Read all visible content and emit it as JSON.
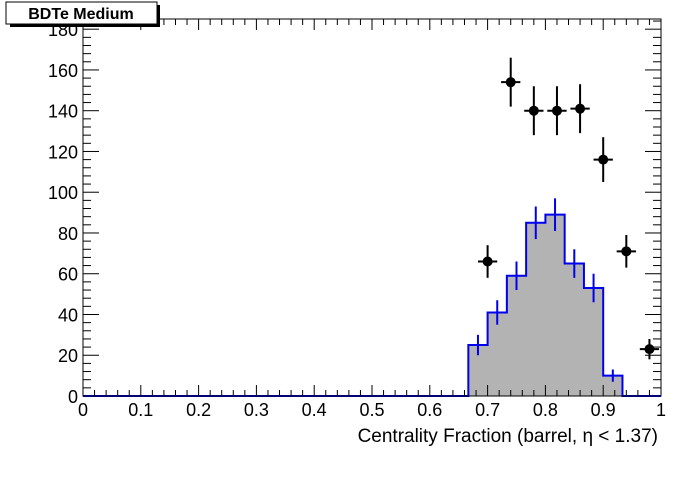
{
  "chart_data": {
    "type": "bar",
    "title": "BDTe Medium",
    "xlabel": "Centrality Fraction (barrel,   η < 1.37)",
    "ylabel": "",
    "xlim": [
      0,
      1
    ],
    "ylim": [
      0,
      185
    ],
    "x_ticks": [
      0,
      0.1,
      0.2,
      0.3,
      0.4,
      0.5,
      0.6,
      0.7,
      0.8,
      0.9,
      1
    ],
    "x_tick_labels": [
      "0",
      "0.1",
      "0.2",
      "0.3",
      "0.4",
      "0.5",
      "0.6",
      "0.7",
      "0.8",
      "0.9",
      "1"
    ],
    "y_ticks": [
      0,
      20,
      40,
      60,
      80,
      100,
      120,
      140,
      160,
      180
    ],
    "y_tick_labels": [
      "0",
      "20",
      "40",
      "60",
      "80",
      "100",
      "120",
      "140",
      "160",
      "180"
    ],
    "bin_edges": [
      0.0,
      0.03333,
      0.06667,
      0.1,
      0.13333,
      0.16667,
      0.2,
      0.23333,
      0.26667,
      0.3,
      0.33333,
      0.36667,
      0.4,
      0.43333,
      0.46667,
      0.5,
      0.53333,
      0.56667,
      0.6,
      0.63333,
      0.66667,
      0.7,
      0.73333,
      0.76667,
      0.8,
      0.83333,
      0.86667,
      0.9,
      0.93333,
      0.96667,
      1.0
    ],
    "series": [
      {
        "kind": "histogram",
        "fill_color": "#b3b3b3",
        "line_color": "#0000ee",
        "values": [
          0,
          0,
          0,
          0,
          0,
          0,
          0,
          0,
          0,
          0,
          0,
          0,
          0,
          0,
          0,
          0,
          0,
          0,
          0,
          0,
          25,
          41,
          59,
          85,
          89,
          65,
          53,
          10,
          0,
          0
        ],
        "errors": [
          0,
          0,
          0,
          0,
          0,
          0,
          0,
          0,
          0,
          0,
          0,
          0,
          0,
          0,
          0,
          0,
          0,
          0,
          0,
          0,
          5,
          6,
          7,
          8,
          8,
          7,
          7,
          3,
          0,
          0
        ]
      },
      {
        "kind": "points",
        "color": "#000000",
        "x": [
          0.7,
          0.74,
          0.78,
          0.82,
          0.86,
          0.9,
          0.94,
          0.98
        ],
        "y": [
          66,
          154,
          140,
          140,
          141,
          116,
          71,
          23
        ],
        "y_errors": [
          8,
          12,
          12,
          12,
          12,
          11,
          8,
          5
        ]
      }
    ],
    "grid": false,
    "legend": "none"
  }
}
